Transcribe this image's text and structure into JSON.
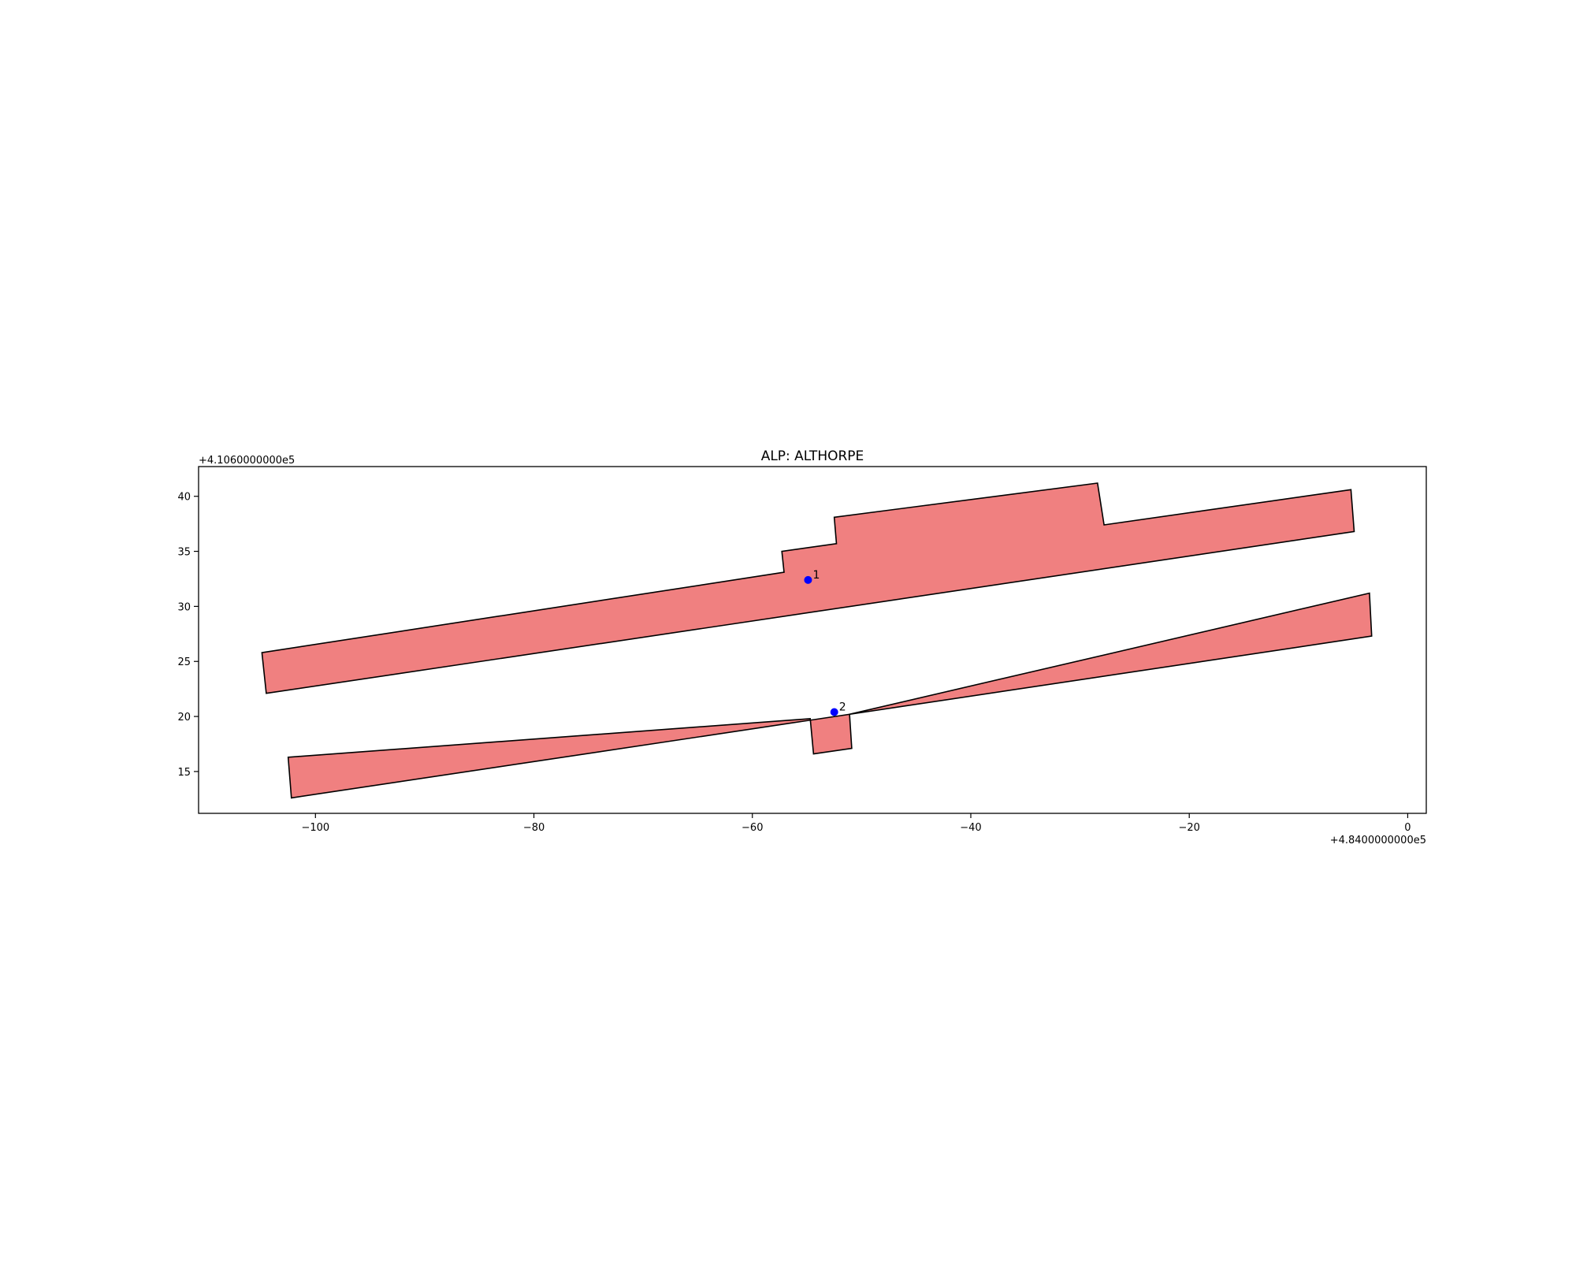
{
  "chart_data": {
    "type": "polygon-map",
    "title": "ALP: ALTHORPE",
    "x_offset_label": "+4.8400000000e5",
    "y_offset_label": "+4.1060000000e5",
    "xlim": [
      -110.7,
      1.7
    ],
    "ylim": [
      11.2,
      42.7
    ],
    "xticks": [
      -100,
      -80,
      -60,
      -40,
      -20,
      0
    ],
    "xtick_labels": [
      "−100",
      "−80",
      "−60",
      "−40",
      "−20",
      "0"
    ],
    "yticks": [
      15,
      20,
      25,
      30,
      35,
      40
    ],
    "ytick_labels": [
      "15",
      "20",
      "25",
      "30",
      "35",
      "40"
    ],
    "grid": false,
    "fill_color": "#f08080",
    "edge_color": "#000000",
    "point_color": "#0000ff",
    "polygons": [
      {
        "points": [
          [
            -104.9,
            25.8
          ],
          [
            -57.1,
            33.1
          ],
          [
            -57.3,
            35.0
          ],
          [
            -52.3,
            35.7
          ],
          [
            -52.5,
            38.1
          ],
          [
            -28.4,
            41.2
          ],
          [
            -27.8,
            37.4
          ],
          [
            -5.2,
            40.6
          ],
          [
            -4.9,
            36.8
          ],
          [
            -104.5,
            22.1
          ]
        ]
      },
      {
        "points": [
          [
            -102.5,
            16.3
          ],
          [
            -54.7,
            19.8
          ],
          [
            -54.4,
            16.6
          ],
          [
            -50.9,
            17.1
          ],
          [
            -51.1,
            20.2
          ],
          [
            -3.5,
            31.2
          ],
          [
            -3.3,
            27.3
          ],
          [
            -102.2,
            12.6
          ]
        ]
      }
    ],
    "points": [
      {
        "label": "1",
        "x": -54.9,
        "y": 32.4
      },
      {
        "label": "2",
        "x": -52.5,
        "y": 20.4
      }
    ]
  }
}
